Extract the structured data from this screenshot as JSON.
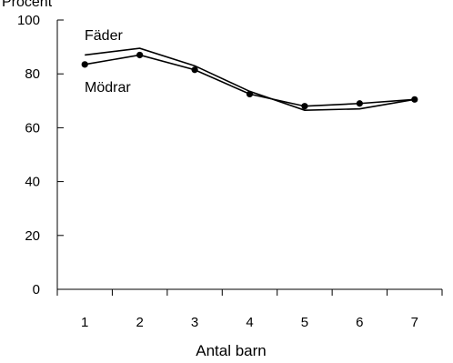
{
  "chart_data": {
    "type": "line",
    "unit_label": "Procent",
    "xlabel": "Antal barn",
    "ylabel": "",
    "categories": [
      "1",
      "2",
      "3",
      "4",
      "5",
      "6",
      "7"
    ],
    "ylim": [
      0,
      100
    ],
    "yticks": [
      "0",
      "20",
      "40",
      "60",
      "80",
      "100"
    ],
    "grid": false,
    "legend": "inline labels",
    "series": [
      {
        "name": "Fäder",
        "values": [
          87,
          89.5,
          83,
          73.5,
          66.5,
          67,
          70.5
        ],
        "color": "#000000",
        "markers": false
      },
      {
        "name": "Mödrar",
        "values": [
          83.5,
          87,
          81.5,
          72.5,
          68,
          69,
          70.5
        ],
        "color": "#000000",
        "markers": true
      }
    ]
  }
}
